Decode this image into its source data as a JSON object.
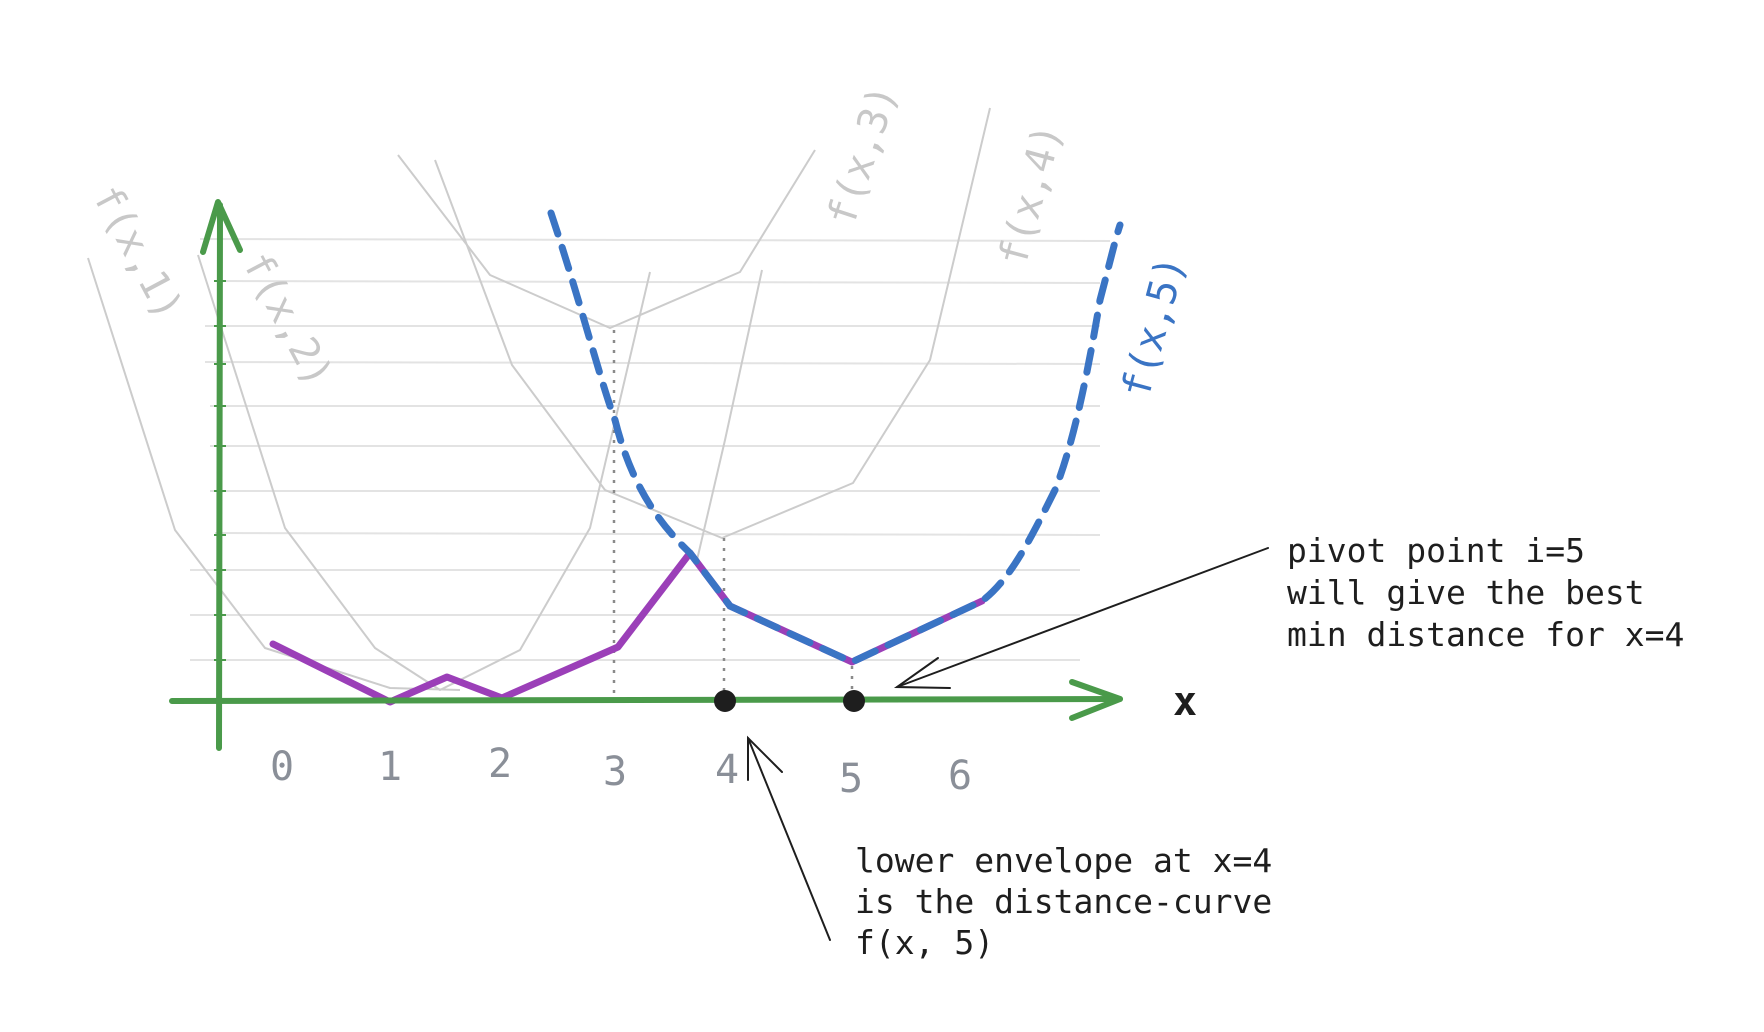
{
  "colors": {
    "axis": "#4a9a4a",
    "gridline": "#e3e3e3",
    "faded_curve": "#cccccc",
    "highlight_curve": "#3a74c4",
    "lower_envelope": "#9b3fb8",
    "dotted_guide": "#8a8a8a",
    "point": "#1e1e1e",
    "annotation": "#1e1e1e",
    "tick_label": "#8a8f98"
  },
  "axis": {
    "x_label": "x",
    "ticks": [
      "0",
      "1",
      "2",
      "3",
      "4",
      "5",
      "6"
    ]
  },
  "curves": {
    "f1": "f(x,1)",
    "f2": "f(x,2)",
    "f3": "f(x,3)",
    "f4": "f(x,4)",
    "f5": "f(x,5)"
  },
  "annotations": {
    "pivot": {
      "line1": "pivot point i=5",
      "line2": "will give the best",
      "line3": "min distance for x=4"
    },
    "envelope": {
      "line1": "lower envelope at x=4",
      "line2": "is the distance-curve",
      "line3": "f(x, 5)"
    }
  }
}
